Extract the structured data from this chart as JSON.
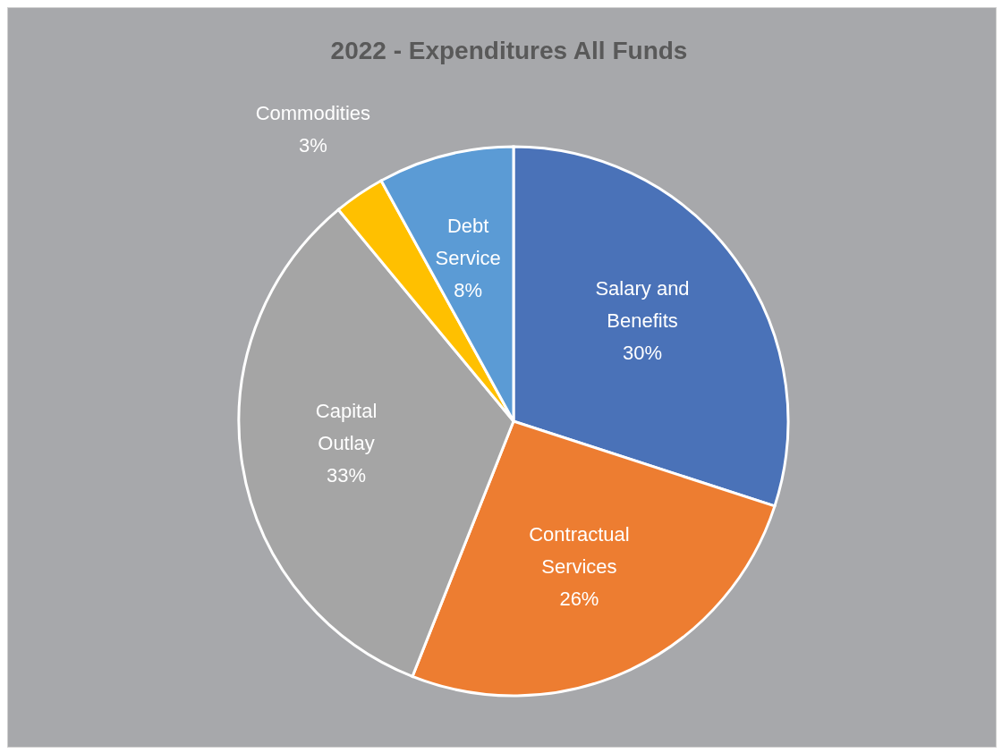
{
  "chart_data": {
    "type": "pie",
    "title": "2022 - Expenditures All Funds",
    "categories": [
      "Salary and Benefits",
      "Contractual Services",
      "Capital Outlay",
      "Commodities",
      "Debt Service"
    ],
    "values": [
      30,
      26,
      33,
      3,
      8
    ],
    "colors": [
      "#4a72b8",
      "#ed7d31",
      "#a5a5a5",
      "#ffc000",
      "#5b9bd5"
    ],
    "value_labels": [
      "30%",
      "26%",
      "33%",
      "3%",
      "8%"
    ],
    "legend": false
  }
}
